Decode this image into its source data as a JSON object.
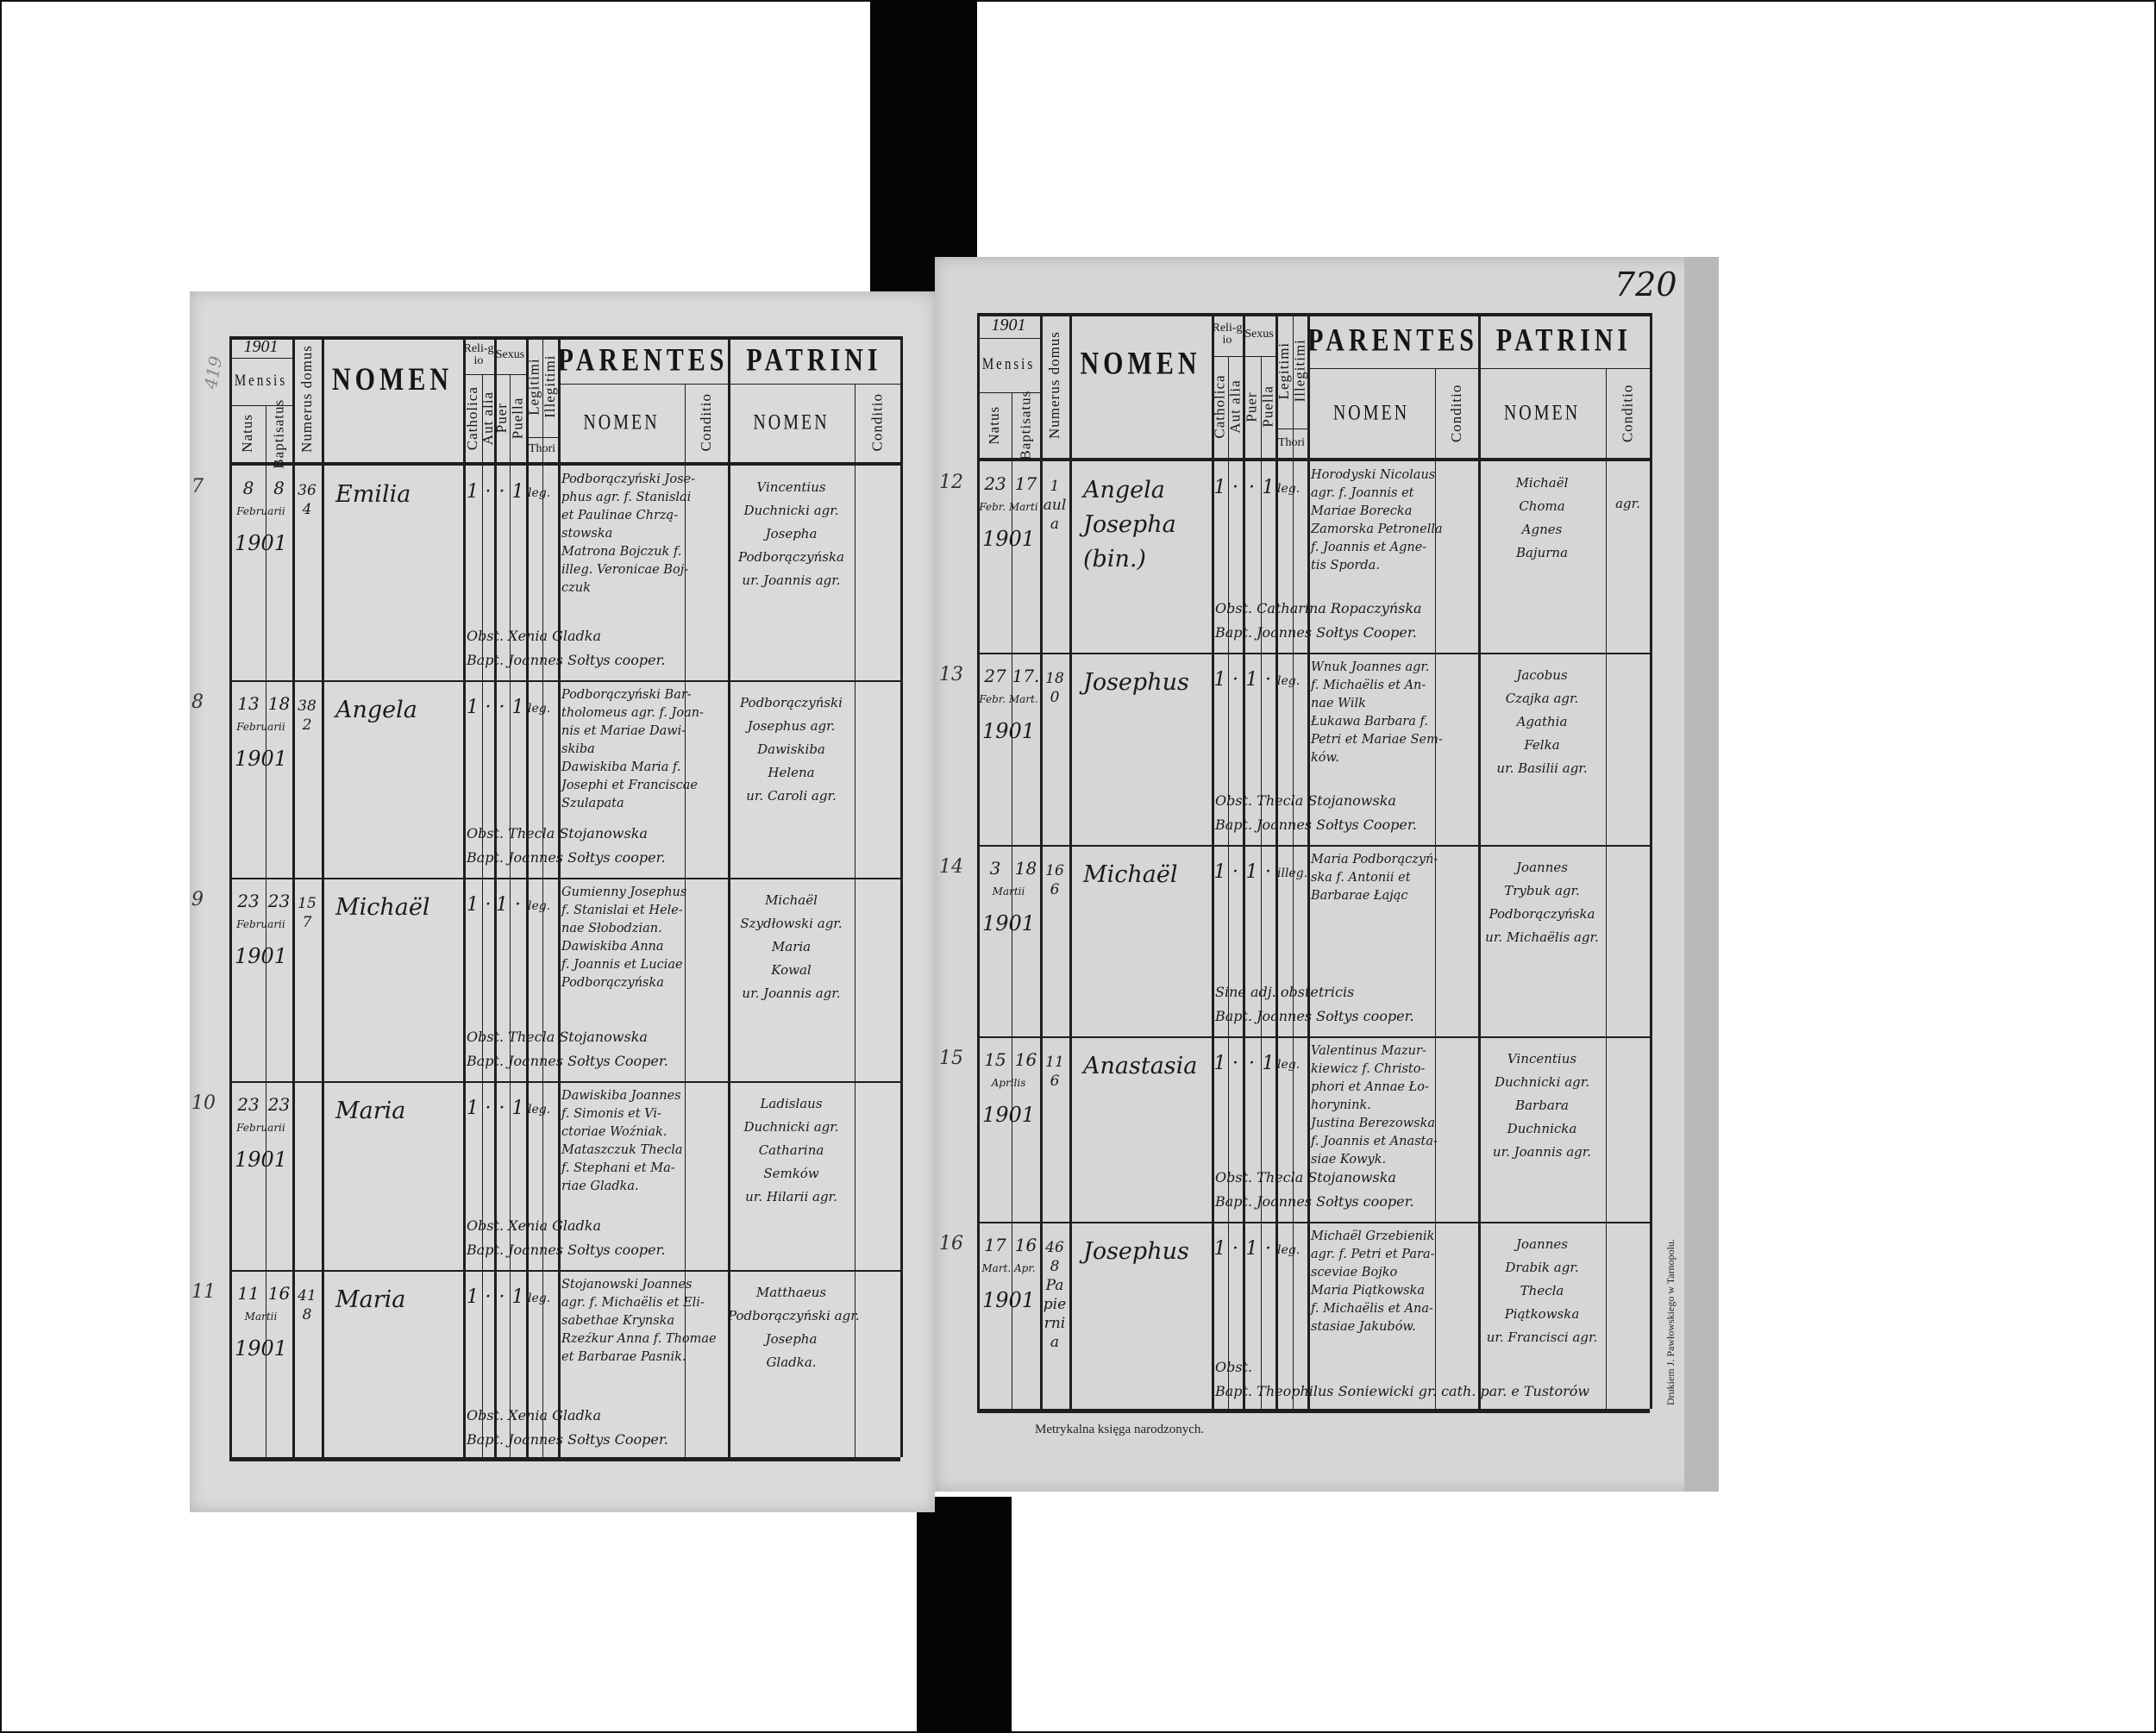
{
  "header": {
    "year": "1901",
    "mensis": "Mensis",
    "natus": "Natus",
    "baptisatus": "Baptisatus",
    "numerus_domus": "Numerus domus",
    "nomen": "NOMEN",
    "religio": "Reli-gio",
    "sexus": "Sexus",
    "catholica": "Catholica",
    "aut_alia": "Aut alia",
    "puer": "Puer",
    "puella": "Puella",
    "legitimi": "Legitimi",
    "illegitimi": "Illegitimi",
    "thori": "Thori",
    "parentes": "PARENTES",
    "parentes_nomen": "NOMEN",
    "parentes_conditio": "Conditio",
    "patrini": "PATRINI",
    "patrini_nomen": "NOMEN",
    "patrini_conditio": "Conditio"
  },
  "pages": [
    {
      "margin_note": "419",
      "entries": [
        {
          "margin_no": "7",
          "natus_day": "8",
          "bapt_day": "8",
          "month": "Februarii",
          "year": "1901",
          "domus": "364",
          "nomen": "Emilia",
          "catholica": "1",
          "aut_alia": "·",
          "puer": "·",
          "puella": "1",
          "legitimitas": "leg.",
          "parentes": [
            "Podborączyński Jose-",
            "phus agr. f. Stanislai",
            "et Paulinae Chrzą-",
            "stowska",
            "Matrona Bojczuk f.",
            "illeg. Veronicae Boj-",
            "czuk"
          ],
          "obst": "Obst. Xenia Gladka",
          "bapt": "Bapt. Joannes Sołtys cooper.",
          "patrini": [
            "Vincentius",
            "Duchnicki agr.",
            "Josepha",
            "Podborączyńska",
            "ur. Joannis agr."
          ],
          "patrini_conditio": ""
        },
        {
          "margin_no": "8",
          "natus_day": "13",
          "bapt_day": "18",
          "month": "Februarii",
          "year": "1901",
          "domus": "382",
          "nomen": "Angela",
          "catholica": "1",
          "aut_alia": "·",
          "puer": "·",
          "puella": "1",
          "legitimitas": "leg.",
          "parentes": [
            "Podborączyński Bar-",
            "tholomeus agr. f. Joan-",
            "nis et Mariae Dawi-",
            "skiba",
            "Dawiskiba Maria f.",
            "Josephi et Franciscae",
            "Szulapata"
          ],
          "obst": "Obst. Thecla Stojanowska",
          "bapt": "Bapt. Joannes Sołtys cooper.",
          "patrini": [
            "Podborączyński",
            "Josephus agr.",
            "Dawiskiba",
            "Helena",
            "ur. Caroli agr."
          ],
          "patrini_conditio": ""
        },
        {
          "margin_no": "9",
          "natus_day": "23",
          "bapt_day": "23",
          "month": "Februarii",
          "year": "1901",
          "domus": "157",
          "nomen": "Michaël",
          "catholica": "1",
          "aut_alia": "·",
          "puer": "1",
          "puella": "·",
          "legitimitas": "leg.",
          "parentes": [
            "Gumienny Josephus",
            "f. Stanislai et Hele-",
            "nae Słobodzian.",
            "Dawiskiba Anna",
            "f. Joannis et Luciae",
            "Podborączyńska"
          ],
          "obst": "Obst. Thecla Stojanowska",
          "bapt": "Bapt. Joannes Sołtys Cooper.",
          "patrini": [
            "Michaël",
            "Szydłowski agr.",
            "Maria",
            "Kowal",
            "ur. Joannis agr."
          ],
          "patrini_conditio": ""
        },
        {
          "margin_no": "10",
          "natus_day": "23",
          "bapt_day": "23",
          "month": "Februarii",
          "year": "1901",
          "domus": "",
          "nomen": "Maria",
          "catholica": "1",
          "aut_alia": "·",
          "puer": "·",
          "puella": "1",
          "legitimitas": "leg.",
          "parentes": [
            "Dawiskiba Joannes",
            "f. Simonis et Vi-",
            "ctoriae Woźniak.",
            "Mataszczuk Thecla",
            "f. Stephani et Ma-",
            "riae Gladka."
          ],
          "obst": "Obst. Xenia Gladka",
          "bapt": "Bapt. Joannes Sołtys cooper.",
          "patrini": [
            "Ladislaus",
            "Duchnicki agr.",
            "Catharina",
            "Semków",
            "ur. Hilarii agr."
          ],
          "patrini_conditio": ""
        },
        {
          "margin_no": "11",
          "natus_day": "11",
          "bapt_day": "16",
          "month": "Martii",
          "year": "1901",
          "domus": "418",
          "nomen": "Maria",
          "catholica": "1",
          "aut_alia": "·",
          "puer": "·",
          "puella": "1",
          "legitimitas": "leg.",
          "parentes": [
            "Stojanowski Joannes",
            "agr. f. Michaëlis et Eli-",
            "sabethae Krynska",
            "Rzeźkur Anna f. Thomae",
            "et Barbarae Pasnik."
          ],
          "obst": "Obst. Xenia Gladka",
          "bapt": "Bapt. Joannes Sołtys Cooper.",
          "patrini": [
            "Matthaeus",
            "Podborączyński agr.",
            "Josepha",
            "Gladka."
          ],
          "patrini_conditio": ""
        }
      ]
    },
    {
      "page_number": "720",
      "entries": [
        {
          "margin_no": "12",
          "natus_day": "23",
          "bapt_day": "17",
          "month": "Febr. Marti",
          "year": "1901",
          "domus": "1 aula",
          "nomen": "Angela Josepha (bin.)",
          "catholica": "1",
          "aut_alia": "·",
          "puer": "·",
          "puella": "1",
          "legitimitas": "leg.",
          "parentes": [
            "Horodyski Nicolaus",
            "agr. f. Joannis et",
            "Mariae Borecka",
            "Zamorska Petronella",
            "f. Joannis et Agne-",
            "tis Sporda."
          ],
          "obst": "Obst. Catharina Ropaczyńska",
          "bapt": "Bapt. Joannes Sołtys Cooper.",
          "patrini": [
            "Michaël",
            "Choma",
            "Agnes",
            "Bajurna"
          ],
          "patrini_conditio": "agr."
        },
        {
          "margin_no": "13",
          "natus_day": "27",
          "bapt_day": "17.",
          "month": "Febr. Mart.",
          "year": "1901",
          "domus": "180",
          "nomen": "Josephus",
          "catholica": "1",
          "aut_alia": "·",
          "puer": "1",
          "puella": "·",
          "legitimitas": "leg.",
          "parentes": [
            "Wnuk Joannes agr.",
            "f. Michaëlis et An-",
            "nae Wilk",
            "Łukawa Barbara f.",
            "Petri et Mariae Sem-",
            "ków."
          ],
          "obst": "Obst. Thecla Stojanowska",
          "bapt": "Bapt. Joannes Sołtys Cooper.",
          "patrini": [
            "Jacobus",
            "Czajka agr.",
            "Agathia",
            "Felka",
            "ur. Basilii agr."
          ],
          "patrini_conditio": ""
        },
        {
          "margin_no": "14",
          "natus_day": "3",
          "bapt_day": "18",
          "month": "Martii",
          "year": "1901",
          "domus": "166",
          "nomen": "Michaël",
          "catholica": "1",
          "aut_alia": "·",
          "puer": "1",
          "puella": "·",
          "legitimitas": "illeg.",
          "parentes": [
            "Maria Podborączyń-",
            "ska f. Antonii et",
            "Barbarae Łając"
          ],
          "obst": "Sine adj. obstetricis",
          "bapt": "Bapt. Joannes Sołtys cooper.",
          "patrini": [
            "Joannes",
            "Trybuk agr.",
            "Podborączyńska",
            "ur. Michaëlis agr."
          ],
          "patrini_conditio": ""
        },
        {
          "margin_no": "15",
          "natus_day": "15",
          "bapt_day": "16",
          "month": "Aprilis",
          "year": "1901",
          "domus": "116",
          "nomen": "Anastasia",
          "catholica": "1",
          "aut_alia": "·",
          "puer": "·",
          "puella": "1",
          "legitimitas": "leg.",
          "parentes": [
            "Valentinus Mazur-",
            "kiewicz f. Christo-",
            "phori et Annae Ło-",
            "horynink.",
            "Justina Berezowska",
            "f. Joannis et Anasta-",
            "siae Kowyk."
          ],
          "obst": "Obst. Thecla Stojanowska",
          "bapt": "Bapt. Joannes Sołtys cooper.",
          "patrini": [
            "Vincentius",
            "Duchnicki agr.",
            "Barbara",
            "Duchnicka",
            "ur. Joannis agr."
          ],
          "patrini_conditio": ""
        },
        {
          "margin_no": "16",
          "natus_day": "17",
          "bapt_day": "16",
          "month": "Mart. Apr.",
          "year": "1901",
          "domus": "468 Papiernia",
          "nomen": "Josephus",
          "catholica": "1",
          "aut_alia": "·",
          "puer": "1",
          "puella": "·",
          "legitimitas": "leg.",
          "parentes": [
            "Michaël Grzebienik",
            "agr. f. Petri et Para-",
            "sceviae Bojko",
            "Maria Piątkowska",
            "f. Michaëlis et Ana-",
            "stasiae Jakubów."
          ],
          "obst": "Obst.",
          "bapt": "Bapt. Theophilus Soniewicki gr. cath. par. e Tustorów",
          "patrini": [
            "Joannes",
            "Drabik agr.",
            "Thecla",
            "Piątkowska",
            "ur. Francisci agr."
          ],
          "patrini_conditio": ""
        }
      ],
      "footer": "Metrykalna księga narodzonych.",
      "printer": "Drukiem J. Pawłowskiego w Tarnopolu."
    }
  ]
}
